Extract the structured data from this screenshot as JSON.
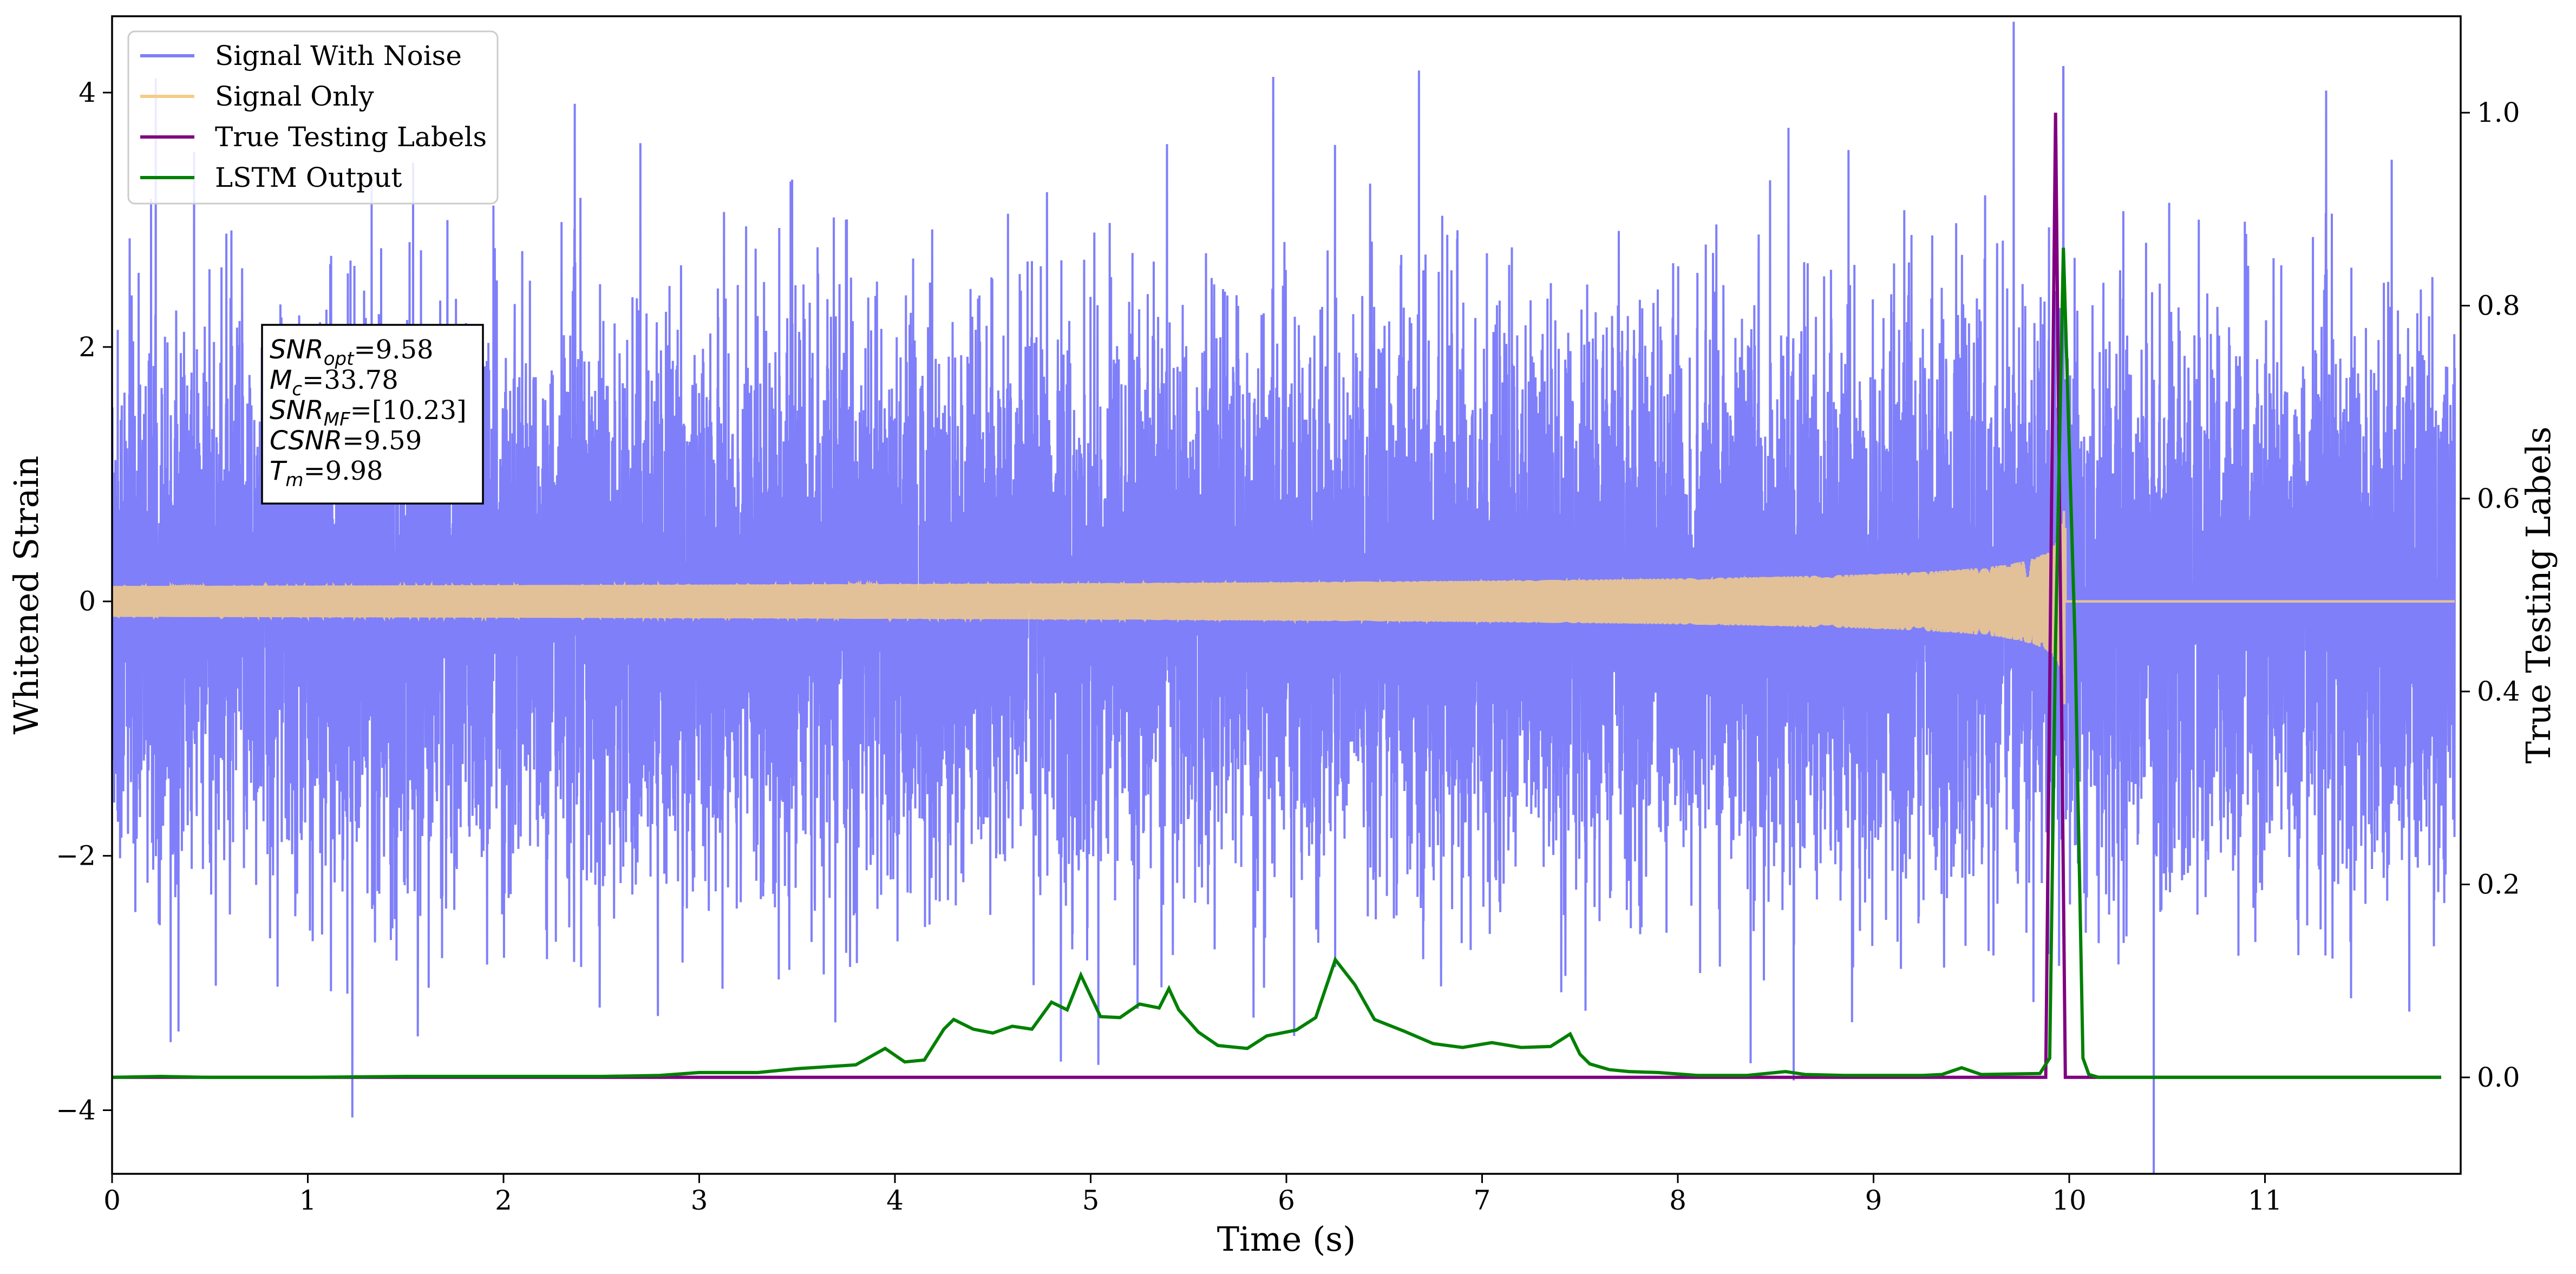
{
  "chart_data": {
    "type": "line",
    "xlabel": "Time (s)",
    "ylabel_left": "Whitened Strain",
    "ylabel_right": "True Testing Labels",
    "xlim": [
      0,
      12
    ],
    "ylim_left": [
      -4.5,
      4.6
    ],
    "ylim_right": [
      -0.1,
      1.1
    ],
    "x_ticks": [
      "0",
      "1",
      "2",
      "3",
      "4",
      "5",
      "6",
      "7",
      "8",
      "9",
      "10",
      "11"
    ],
    "y_ticks_left": [
      "−4",
      "−2",
      "0",
      "2",
      "4"
    ],
    "y_ticks_right": [
      "0.0",
      "0.2",
      "0.4",
      "0.6",
      "0.8",
      "1.0"
    ],
    "legend": {
      "position": "upper-left",
      "entries": [
        {
          "label": "Signal With Noise",
          "color": "#7f7ffa"
        },
        {
          "label": "Signal Only",
          "color": "#f5cc86"
        },
        {
          "label": "True Testing Labels",
          "color": "#800080"
        },
        {
          "label": "LSTM Output",
          "color": "#008000"
        }
      ]
    },
    "annotation": {
      "lines": [
        {
          "symbol": "SNR",
          "sub": "opt",
          "value": "=9.58"
        },
        {
          "symbol": "M",
          "sub": "c",
          "value": "=33.78"
        },
        {
          "symbol": "SNR",
          "sub": "MF",
          "value": "=[10.23]"
        },
        {
          "symbol": "CSNR",
          "sub": "",
          "value": "=9.59"
        },
        {
          "symbol": "T",
          "sub": "m",
          "value": "=9.98"
        }
      ]
    },
    "series": [
      {
        "name": "Signal With Noise",
        "axis": "left",
        "color": "#7f7ffa",
        "description": "white noise, approx. amplitude 1, extremes about ±3.5, peak 4.2 near t=9.97",
        "noise_sigma": 1.0,
        "t_range": [
          0,
          12
        ]
      },
      {
        "name": "Signal Only",
        "axis": "left",
        "color": "#f5cc86",
        "description": "chirp, amplitude growing toward t=9.98 then zero",
        "merger_time": 9.98,
        "peak_amplitude": 0.9
      },
      {
        "name": "True Testing Labels",
        "axis": "right",
        "color": "#800080",
        "x": [
          0,
          9.88,
          9.93,
          9.98,
          10.0,
          11.9
        ],
        "y": [
          0,
          0,
          1.0,
          0,
          0,
          0
        ]
      },
      {
        "name": "LSTM Output",
        "axis": "right",
        "color": "#008000",
        "x": [
          0,
          0.25,
          0.5,
          1.0,
          1.5,
          2.0,
          2.5,
          2.8,
          3.0,
          3.3,
          3.5,
          3.8,
          3.95,
          4.05,
          4.15,
          4.25,
          4.3,
          4.4,
          4.5,
          4.6,
          4.7,
          4.8,
          4.88,
          4.95,
          5.05,
          5.15,
          5.25,
          5.35,
          5.4,
          5.45,
          5.55,
          5.65,
          5.8,
          5.9,
          6.05,
          6.15,
          6.25,
          6.35,
          6.45,
          6.6,
          6.75,
          6.9,
          7.05,
          7.2,
          7.35,
          7.45,
          7.5,
          7.55,
          7.65,
          7.75,
          7.9,
          8.1,
          8.35,
          8.55,
          8.65,
          8.85,
          9.05,
          9.25,
          9.35,
          9.45,
          9.55,
          9.85,
          9.9,
          9.93,
          9.97,
          10.03,
          10.07,
          10.1,
          10.15,
          10.3,
          11.0,
          11.9
        ],
        "y": [
          0,
          0.001,
          0,
          0,
          0.001,
          0.001,
          0.001,
          0.002,
          0.005,
          0.005,
          0.009,
          0.013,
          0.03,
          0.016,
          0.018,
          0.05,
          0.06,
          0.05,
          0.046,
          0.053,
          0.05,
          0.078,
          0.07,
          0.106,
          0.063,
          0.062,
          0.076,
          0.072,
          0.092,
          0.07,
          0.047,
          0.033,
          0.03,
          0.043,
          0.049,
          0.062,
          0.122,
          0.096,
          0.06,
          0.048,
          0.035,
          0.031,
          0.036,
          0.031,
          0.032,
          0.045,
          0.024,
          0.014,
          0.008,
          0.006,
          0.005,
          0.002,
          0.002,
          0.006,
          0.003,
          0.002,
          0.002,
          0.002,
          0.003,
          0.01,
          0.003,
          0.004,
          0.02,
          0.45,
          0.86,
          0.45,
          0.02,
          0.003,
          0,
          0,
          0,
          0
        ]
      }
    ]
  }
}
